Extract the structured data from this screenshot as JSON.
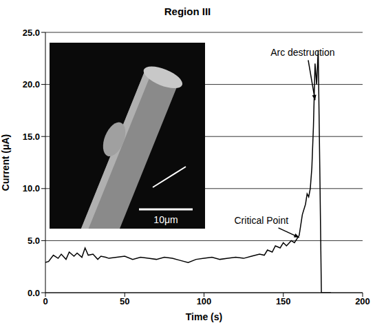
{
  "chart_data": {
    "type": "line",
    "title": "Region III",
    "x_label": "Time (s)",
    "y_label": "Current (μA)",
    "x": [
      0,
      2,
      5,
      8,
      10,
      13,
      15,
      18,
      20,
      23,
      25,
      27,
      30,
      33,
      35,
      38,
      40,
      45,
      50,
      55,
      60,
      65,
      70,
      75,
      80,
      85,
      90,
      95,
      100,
      105,
      110,
      115,
      120,
      125,
      130,
      135,
      138,
      140,
      143,
      145,
      148,
      150,
      152,
      155,
      157,
      160,
      162,
      164,
      165,
      166,
      167,
      168,
      169,
      170,
      171,
      172,
      173,
      173.5,
      174,
      175,
      180
    ],
    "values": [
      2.9,
      3.0,
      3.6,
      3.3,
      3.7,
      3.2,
      3.9,
      3.5,
      3.8,
      3.4,
      4.3,
      3.6,
      3.7,
      3.2,
      3.5,
      3.4,
      3.3,
      3.4,
      3.5,
      3.2,
      3.4,
      3.3,
      3.2,
      3.4,
      3.3,
      3.1,
      2.9,
      3.2,
      3.3,
      3.4,
      3.2,
      3.3,
      3.4,
      3.3,
      3.5,
      3.7,
      3.6,
      4.1,
      3.9,
      4.5,
      4.3,
      4.8,
      4.5,
      5.0,
      4.8,
      5.5,
      7.5,
      8.5,
      9.5,
      9.2,
      10.0,
      12.0,
      16.0,
      22.0,
      20.0,
      23.3,
      12.0,
      6.0,
      0.0,
      0.0,
      0.0
    ],
    "color": "#000000",
    "xlim": [
      0,
      200
    ],
    "xticks": [
      0,
      50,
      100,
      150,
      200
    ],
    "ylim": [
      0,
      25
    ],
    "yticks": [
      {
        "value": 0,
        "label": "0.0"
      },
      {
        "value": 5,
        "label": "5.0"
      },
      {
        "value": 10,
        "label": "10.0"
      },
      {
        "value": 15,
        "label": "15.0"
      },
      {
        "value": 20,
        "label": "20.0"
      },
      {
        "value": 25,
        "label": "25.0"
      }
    ],
    "grid": true,
    "annotations": [
      {
        "text": "Arc destruction",
        "x": 170,
        "y": 18.5
      },
      {
        "text": "Critical Point",
        "x": 160,
        "y": 5.3
      }
    ],
    "inset": {
      "scale_bar_label": "10μm"
    }
  }
}
